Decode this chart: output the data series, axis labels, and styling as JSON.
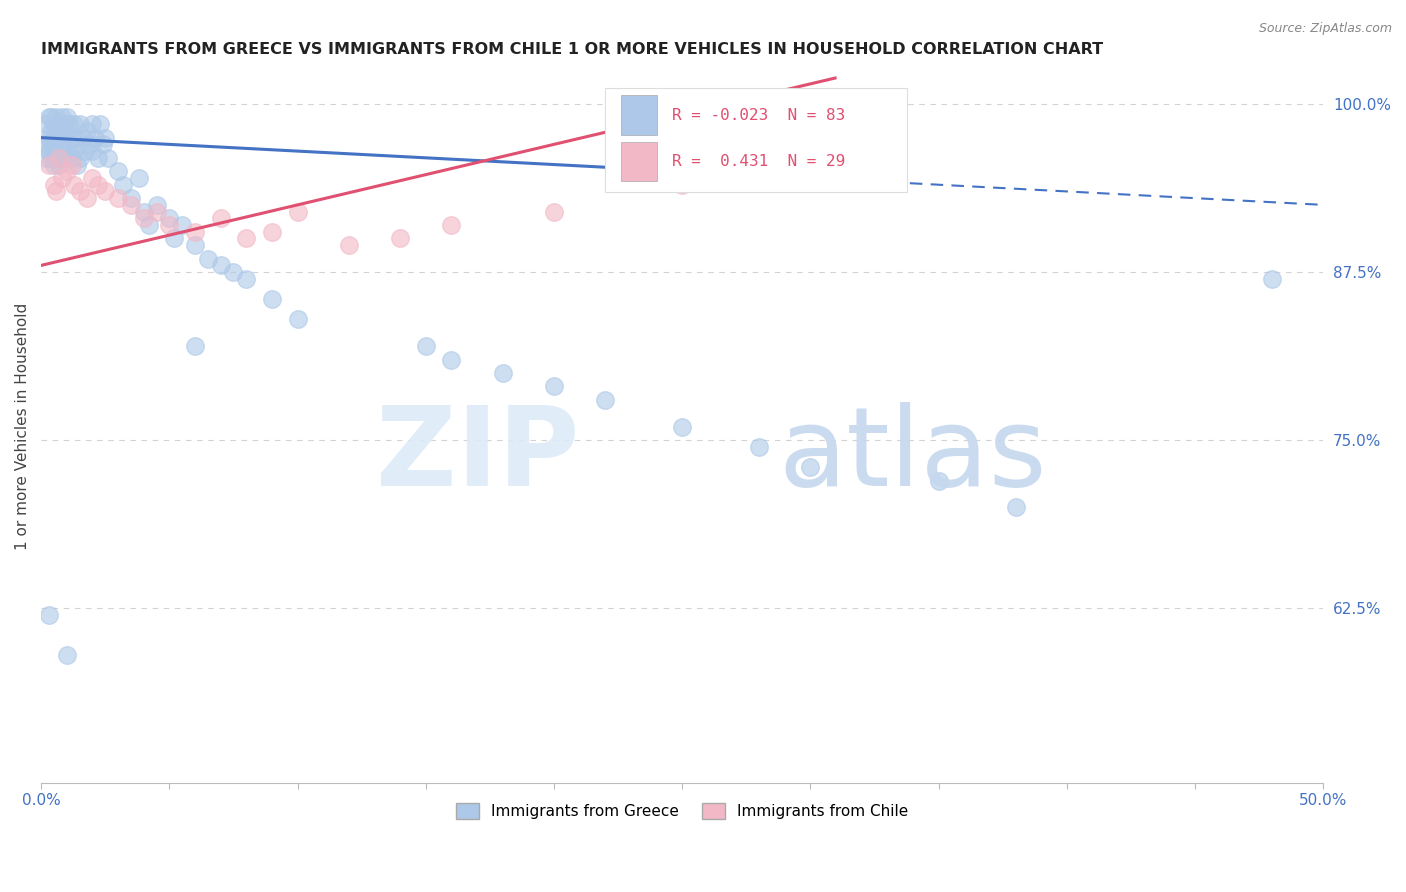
{
  "title": "IMMIGRANTS FROM GREECE VS IMMIGRANTS FROM CHILE 1 OR MORE VEHICLES IN HOUSEHOLD CORRELATION CHART",
  "source": "Source: ZipAtlas.com",
  "ylabel": "1 or more Vehicles in Household",
  "xlim": [
    0.0,
    0.5
  ],
  "ylim": [
    0.495,
    1.025
  ],
  "yticks": [
    0.625,
    0.75,
    0.875,
    1.0
  ],
  "ytick_labels": [
    "62.5%",
    "75.0%",
    "87.5%",
    "100.0%"
  ],
  "xtick_positions": [
    0.0,
    0.05,
    0.1,
    0.15,
    0.2,
    0.25,
    0.3,
    0.35,
    0.4,
    0.45,
    0.5
  ],
  "xtick_labels": [
    "0.0%",
    "",
    "",
    "",
    "",
    "",
    "",
    "",
    "",
    "",
    "50.0%"
  ],
  "greece_color": "#adc8e8",
  "chile_color": "#f2b8c6",
  "trend_greece_color": "#4472c4",
  "trend_chile_color": "#e05070",
  "R_greece": -0.023,
  "N_greece": 83,
  "R_chile": 0.431,
  "N_chile": 29,
  "background": "#ffffff",
  "grid_color": "#c8c8c8",
  "tick_label_color": "#4472c4",
  "title_color": "#222222",
  "source_color": "#888888",
  "legend_text_color_r": "#e05070",
  "legend_text_color_n": "#4472c4"
}
